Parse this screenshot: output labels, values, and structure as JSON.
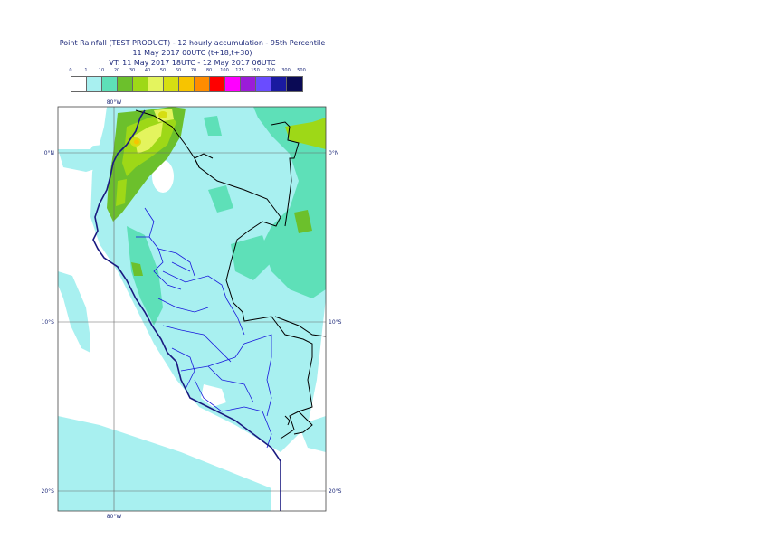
{
  "title": {
    "line1": "Point Rainfall (TEST PRODUCT) - 12 hourly accumulation - 95th Percentile",
    "line2": "11 May 2017 00UTC (t+18,t+30)",
    "line3": "VT: 11 May 2017 18UTC - 12 May 2017 06UTC"
  },
  "legend": {
    "labels": [
      "0",
      "1",
      "10",
      "20",
      "30",
      "40",
      "50",
      "60",
      "70",
      "80",
      "100",
      "125",
      "150",
      "200",
      "300",
      "500"
    ],
    "colors": [
      "#ffffff",
      "#a8f0f0",
      "#5ee0b8",
      "#6cc02c",
      "#9ed817",
      "#e4f45e",
      "#d6de12",
      "#f7c400",
      "#ff8c00",
      "#ff0000",
      "#ff00ff",
      "#9b1cd8",
      "#6a4cff",
      "#1a1aa0",
      "#0a0a55"
    ]
  },
  "axes": {
    "lon_top": "80°W",
    "lon_bottom": "80°W",
    "lat_0": "0°N",
    "lat_10": "10°S",
    "lat_20": "20°S"
  }
}
